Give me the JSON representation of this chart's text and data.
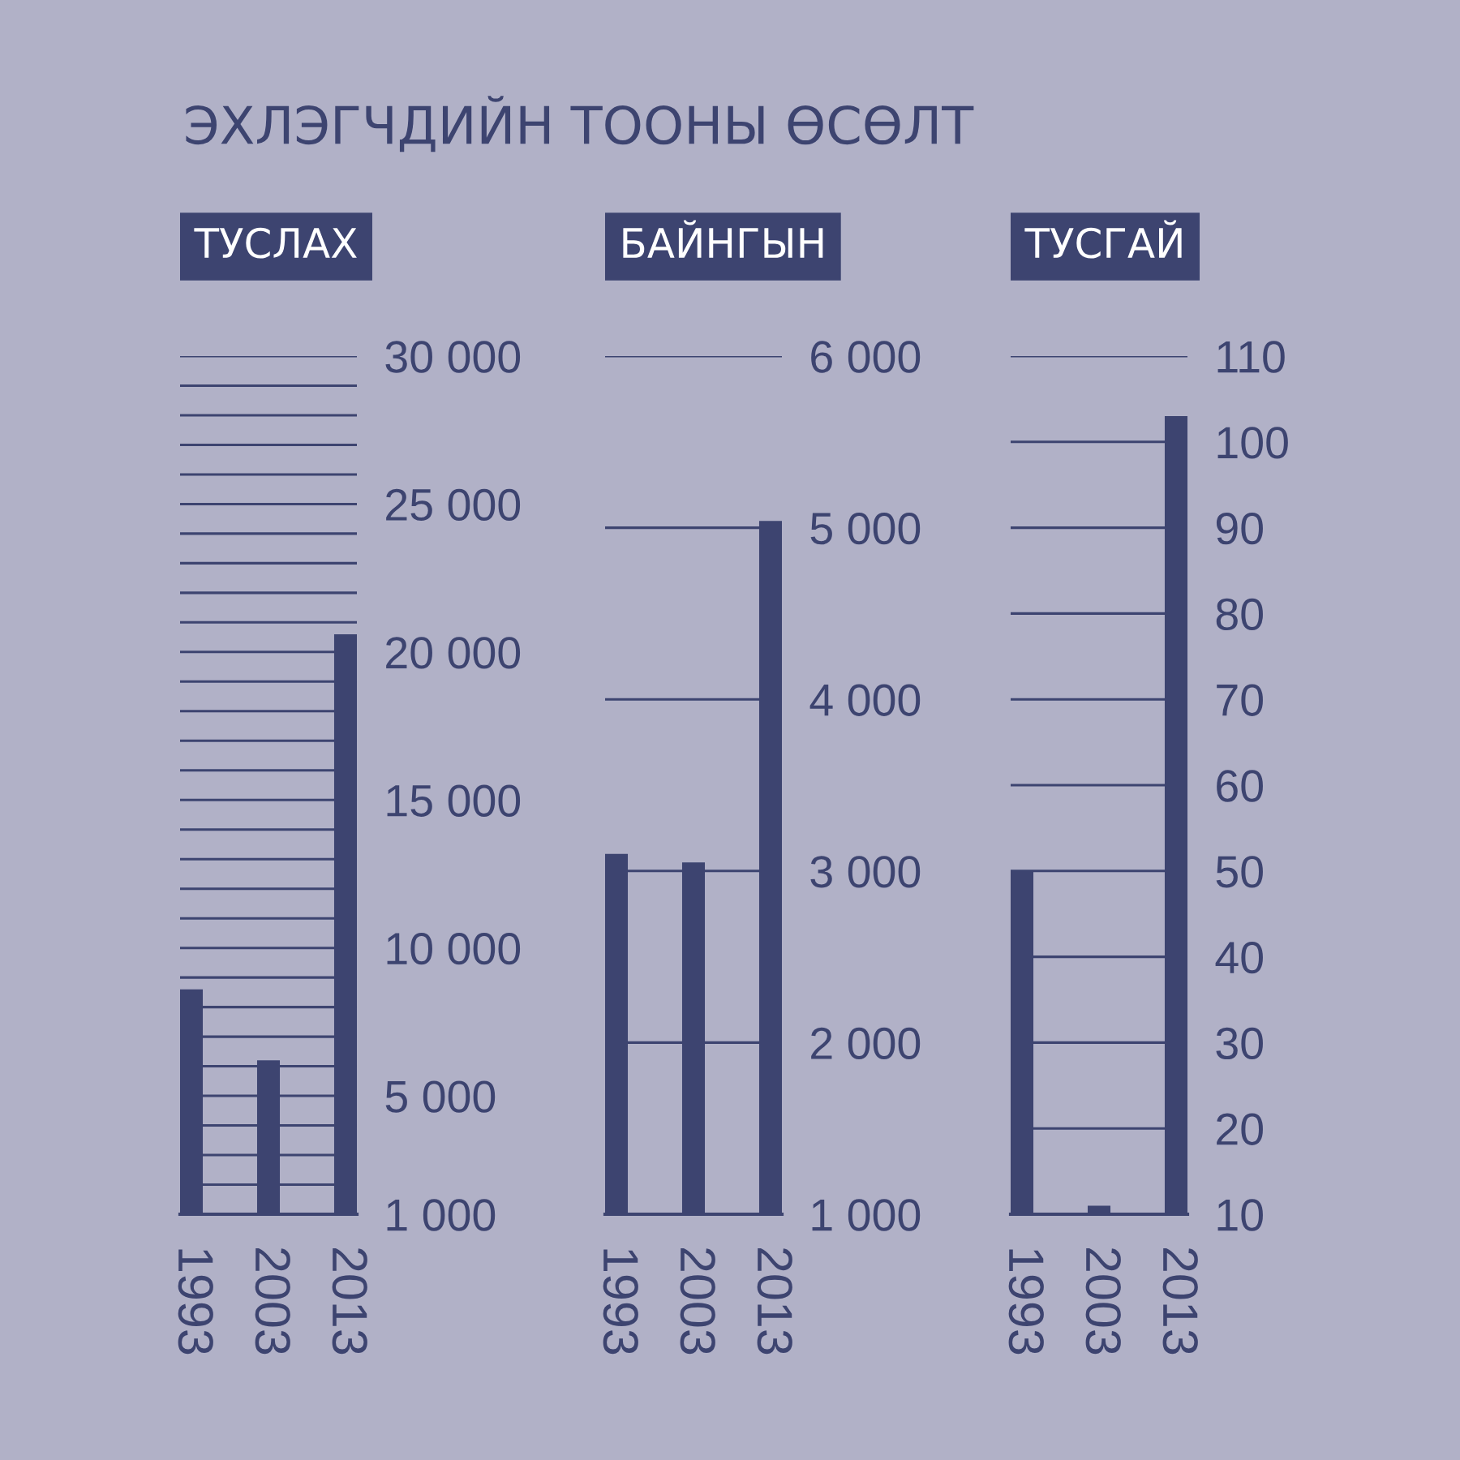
{
  "chart_data": [
    {
      "type": "bar",
      "title": "ЭХЛЭГЧДИЙН ТООНЫ ӨСӨЛТ",
      "subtitle": "ТУСЛАХ",
      "categories": [
        "1993",
        "2003",
        "2013"
      ],
      "values": [
        8600,
        6200,
        20600
      ],
      "color": "#3d4470",
      "ylim": [
        1000,
        30000
      ],
      "yticks": [
        {
          "value": 1000,
          "label": "1 000"
        },
        {
          "value": 2000,
          "label": null
        },
        {
          "value": 3000,
          "label": null
        },
        {
          "value": 4000,
          "label": null
        },
        {
          "value": 5000,
          "label": "5 000"
        },
        {
          "value": 6000,
          "label": null
        },
        {
          "value": 7000,
          "label": null
        },
        {
          "value": 8000,
          "label": null
        },
        {
          "value": 9000,
          "label": null
        },
        {
          "value": 10000,
          "label": "10 000"
        },
        {
          "value": 11000,
          "label": null
        },
        {
          "value": 12000,
          "label": null
        },
        {
          "value": 13000,
          "label": null
        },
        {
          "value": 14000,
          "label": null
        },
        {
          "value": 15000,
          "label": "15 000"
        },
        {
          "value": 16000,
          "label": null
        },
        {
          "value": 17000,
          "label": null
        },
        {
          "value": 18000,
          "label": null
        },
        {
          "value": 19000,
          "label": null
        },
        {
          "value": 20000,
          "label": "20 000"
        },
        {
          "value": 21000,
          "label": null
        },
        {
          "value": 22000,
          "label": null
        },
        {
          "value": 23000,
          "label": null
        },
        {
          "value": 24000,
          "label": null
        },
        {
          "value": 25000,
          "label": "25 000"
        },
        {
          "value": 26000,
          "label": null
        },
        {
          "value": 27000,
          "label": null
        },
        {
          "value": 28000,
          "label": null
        },
        {
          "value": 29000,
          "label": null
        },
        {
          "value": 30000,
          "label": "30 000"
        }
      ],
      "grid": "y"
    },
    {
      "type": "bar",
      "subtitle": "БАЙНГЫН",
      "categories": [
        "1993",
        "2003",
        "2013"
      ],
      "values": [
        3100,
        3050,
        5040
      ],
      "color": "#3d4470",
      "ylim": [
        1000,
        6000
      ],
      "yticks": [
        {
          "value": 1000,
          "label": "1 000"
        },
        {
          "value": 2000,
          "label": "2 000"
        },
        {
          "value": 3000,
          "label": "3 000"
        },
        {
          "value": 4000,
          "label": "4 000"
        },
        {
          "value": 5000,
          "label": "5 000"
        },
        {
          "value": 6000,
          "label": "6 000"
        }
      ],
      "grid": "y"
    },
    {
      "type": "bar",
      "subtitle": "ТУСГАЙ",
      "categories": [
        "1993",
        "2003",
        "2013"
      ],
      "values": [
        50,
        11,
        103
      ],
      "color": "#3d4470",
      "ylim": [
        10,
        110
      ],
      "yticks": [
        10,
        20,
        30,
        40,
        50,
        60,
        70,
        80,
        90,
        100,
        110
      ],
      "grid": "y"
    }
  ]
}
